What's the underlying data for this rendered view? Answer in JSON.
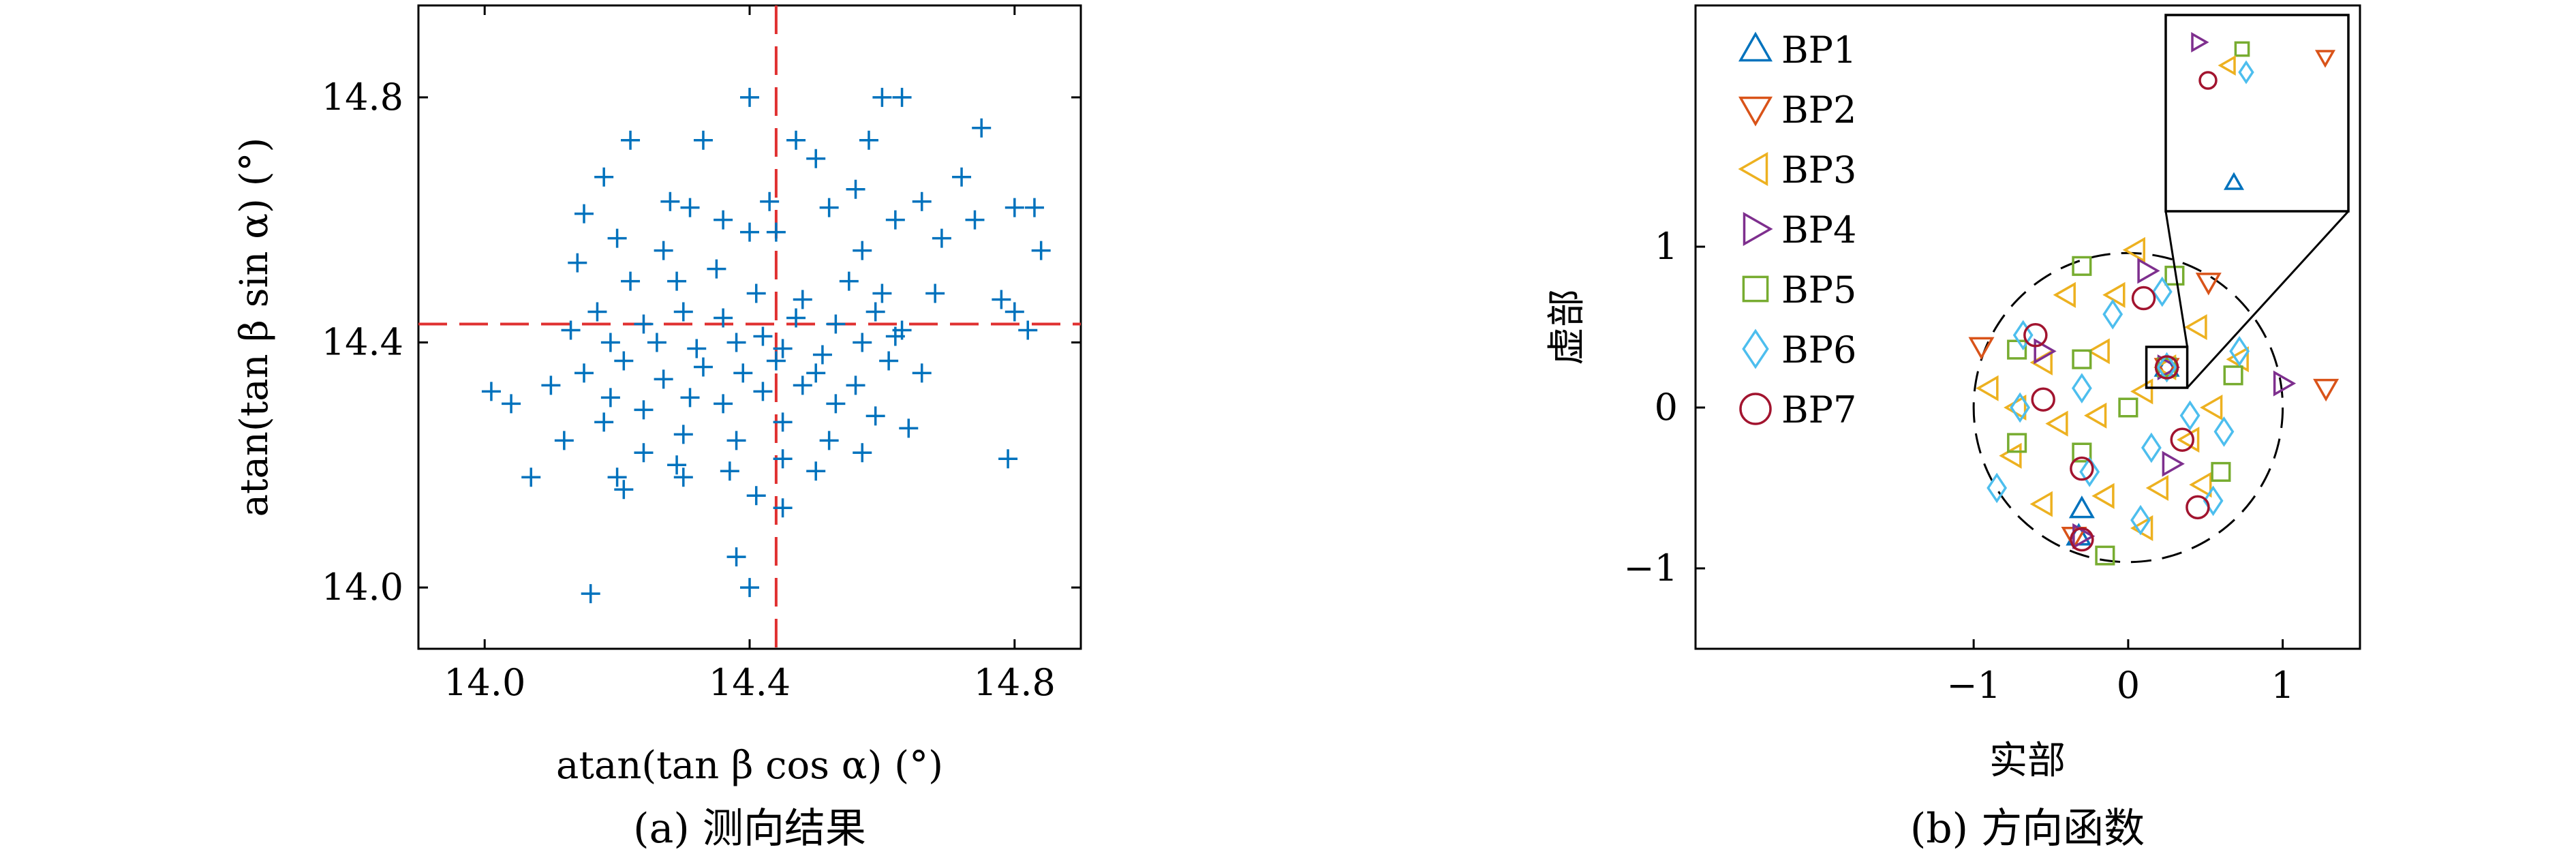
{
  "figure": {
    "caption_a": "(a) 测向结果",
    "caption_b": "(b) 方向函数"
  },
  "chart_data": [
    {
      "type": "scatter",
      "marker": "plus",
      "color": "#0072BD",
      "xlabel": "atan(tan β cos α) (°)",
      "ylabel": "atan(tan β sin α) (°)",
      "xlim": [
        13.9,
        14.9
      ],
      "ylim": [
        13.9,
        14.95
      ],
      "xticks": [
        "14.0",
        "14.4",
        "14.8"
      ],
      "yticks": [
        "14.0",
        "14.4",
        "14.8"
      ],
      "reference_lines": {
        "x": 14.44,
        "y": 14.43,
        "color": "#E03030",
        "style": "dashed"
      },
      "points": [
        [
          14.22,
          14.73
        ],
        [
          14.33,
          14.73
        ],
        [
          14.4,
          14.8
        ],
        [
          14.47,
          14.73
        ],
        [
          14.58,
          14.73
        ],
        [
          14.6,
          14.8
        ],
        [
          14.75,
          14.75
        ],
        [
          14.63,
          14.8
        ],
        [
          14.18,
          14.67
        ],
        [
          14.28,
          14.63
        ],
        [
          14.31,
          14.62
        ],
        [
          14.43,
          14.63
        ],
        [
          14.5,
          14.7
        ],
        [
          14.56,
          14.65
        ],
        [
          14.66,
          14.63
        ],
        [
          14.72,
          14.67
        ],
        [
          14.8,
          14.62
        ],
        [
          14.83,
          14.62
        ],
        [
          14.15,
          14.61
        ],
        [
          14.2,
          14.57
        ],
        [
          14.27,
          14.55
        ],
        [
          14.36,
          14.6
        ],
        [
          14.4,
          14.58
        ],
        [
          14.44,
          14.58
        ],
        [
          14.52,
          14.62
        ],
        [
          14.57,
          14.55
        ],
        [
          14.62,
          14.6
        ],
        [
          14.69,
          14.57
        ],
        [
          14.74,
          14.6
        ],
        [
          14.84,
          14.55
        ],
        [
          14.14,
          14.53
        ],
        [
          14.22,
          14.5
        ],
        [
          14.29,
          14.5
        ],
        [
          14.35,
          14.52
        ],
        [
          14.41,
          14.48
        ],
        [
          14.48,
          14.47
        ],
        [
          14.55,
          14.5
        ],
        [
          14.6,
          14.48
        ],
        [
          14.68,
          14.48
        ],
        [
          14.78,
          14.47
        ],
        [
          14.17,
          14.45
        ],
        [
          14.24,
          14.43
        ],
        [
          14.3,
          14.45
        ],
        [
          14.36,
          14.44
        ],
        [
          14.42,
          14.41
        ],
        [
          14.47,
          14.44
        ],
        [
          14.53,
          14.43
        ],
        [
          14.59,
          14.45
        ],
        [
          14.63,
          14.42
        ],
        [
          14.8,
          14.45
        ],
        [
          14.13,
          14.42
        ],
        [
          14.19,
          14.4
        ],
        [
          14.26,
          14.4
        ],
        [
          14.32,
          14.39
        ],
        [
          14.38,
          14.4
        ],
        [
          14.45,
          14.39
        ],
        [
          14.51,
          14.38
        ],
        [
          14.57,
          14.4
        ],
        [
          14.62,
          14.41
        ],
        [
          14.82,
          14.42
        ],
        [
          14.01,
          14.32
        ],
        [
          14.04,
          14.3
        ],
        [
          14.1,
          14.33
        ],
        [
          14.15,
          14.35
        ],
        [
          14.21,
          14.37
        ],
        [
          14.27,
          14.34
        ],
        [
          14.33,
          14.36
        ],
        [
          14.39,
          14.35
        ],
        [
          14.44,
          14.37
        ],
        [
          14.5,
          14.35
        ],
        [
          14.56,
          14.33
        ],
        [
          14.61,
          14.37
        ],
        [
          14.66,
          14.35
        ],
        [
          14.19,
          14.31
        ],
        [
          14.24,
          14.29
        ],
        [
          14.31,
          14.31
        ],
        [
          14.36,
          14.3
        ],
        [
          14.42,
          14.32
        ],
        [
          14.48,
          14.33
        ],
        [
          14.53,
          14.3
        ],
        [
          14.59,
          14.28
        ],
        [
          14.64,
          14.26
        ],
        [
          14.12,
          14.24
        ],
        [
          14.18,
          14.27
        ],
        [
          14.24,
          14.22
        ],
        [
          14.3,
          14.25
        ],
        [
          14.38,
          14.24
        ],
        [
          14.45,
          14.27
        ],
        [
          14.52,
          14.24
        ],
        [
          14.57,
          14.22
        ],
        [
          14.07,
          14.18
        ],
        [
          14.2,
          14.18
        ],
        [
          14.29,
          14.2
        ],
        [
          14.37,
          14.19
        ],
        [
          14.45,
          14.21
        ],
        [
          14.5,
          14.19
        ],
        [
          14.79,
          14.21
        ],
        [
          14.21,
          14.16
        ],
        [
          14.3,
          14.18
        ],
        [
          14.41,
          14.15
        ],
        [
          14.45,
          14.13
        ],
        [
          14.38,
          14.05
        ],
        [
          14.16,
          13.99
        ],
        [
          14.4,
          14.0
        ]
      ]
    },
    {
      "type": "scatter",
      "xlabel": "实部",
      "ylabel": "虚部",
      "xlim": [
        -2.8,
        1.5
      ],
      "ylim": [
        -1.5,
        2.5
      ],
      "xticks": [
        "−1",
        "0",
        "1"
      ],
      "yticks": [
        "−1",
        "0",
        "1"
      ],
      "unit_circle": {
        "radius": 1.0,
        "style": "dashed"
      },
      "series": [
        {
          "name": "BP1",
          "marker": "triangle-up",
          "color": "#0072BD",
          "points": [
            [
              -0.3,
              -0.63
            ],
            [
              0.25,
              0.25
            ],
            [
              -0.32,
              -0.8
            ]
          ]
        },
        {
          "name": "BP2",
          "marker": "triangle-down",
          "color": "#D95319",
          "points": [
            [
              -0.95,
              0.38
            ],
            [
              1.28,
              0.12
            ],
            [
              0.52,
              0.78
            ],
            [
              -0.35,
              -0.8
            ],
            [
              0.25,
              0.25
            ]
          ]
        },
        {
          "name": "BP3",
          "marker": "triangle-left",
          "color": "#EDB120",
          "points": [
            [
              -0.9,
              0.12
            ],
            [
              -0.72,
              0.0
            ],
            [
              -0.55,
              0.28
            ],
            [
              -0.4,
              0.7
            ],
            [
              -0.18,
              0.35
            ],
            [
              0.05,
              0.98
            ],
            [
              -0.45,
              -0.1
            ],
            [
              -0.2,
              -0.05
            ],
            [
              0.1,
              0.1
            ],
            [
              -0.75,
              -0.3
            ],
            [
              -0.55,
              -0.6
            ],
            [
              -0.15,
              -0.55
            ],
            [
              0.4,
              -0.2
            ],
            [
              0.55,
              0.0
            ],
            [
              0.72,
              0.3
            ],
            [
              0.45,
              0.5
            ],
            [
              0.2,
              -0.5
            ],
            [
              0.48,
              -0.48
            ],
            [
              -0.08,
              0.7
            ],
            [
              0.1,
              -0.75
            ],
            [
              0.25,
              0.25
            ]
          ]
        },
        {
          "name": "BP4",
          "marker": "triangle-right",
          "color": "#7E2F8E",
          "points": [
            [
              0.12,
              0.85
            ],
            [
              -0.55,
              0.35
            ],
            [
              1.0,
              0.15
            ],
            [
              0.28,
              -0.35
            ],
            [
              -0.3,
              -0.8
            ],
            [
              0.25,
              0.25
            ]
          ]
        },
        {
          "name": "BP5",
          "marker": "square",
          "color": "#77AC30",
          "points": [
            [
              -0.72,
              0.36
            ],
            [
              -0.3,
              0.3
            ],
            [
              -0.3,
              -0.28
            ],
            [
              -0.72,
              -0.22
            ],
            [
              0.3,
              0.82
            ],
            [
              -0.3,
              0.88
            ],
            [
              0.68,
              0.2
            ],
            [
              0.6,
              -0.4
            ],
            [
              -0.15,
              -0.92
            ],
            [
              0.0,
              0.0
            ],
            [
              0.25,
              0.25
            ]
          ]
        },
        {
          "name": "BP6",
          "marker": "diamond",
          "color": "#4DBEEE",
          "points": [
            [
              -0.68,
              0.45
            ],
            [
              -0.7,
              0.0
            ],
            [
              -0.85,
              -0.5
            ],
            [
              -0.3,
              0.12
            ],
            [
              -0.1,
              0.58
            ],
            [
              0.22,
              0.72
            ],
            [
              -0.25,
              -0.4
            ],
            [
              0.15,
              -0.25
            ],
            [
              0.4,
              -0.05
            ],
            [
              0.62,
              -0.15
            ],
            [
              0.72,
              0.35
            ],
            [
              0.08,
              -0.7
            ],
            [
              0.55,
              -0.58
            ],
            [
              0.25,
              0.25
            ]
          ]
        },
        {
          "name": "BP7",
          "marker": "circle",
          "color": "#A2142F",
          "points": [
            [
              -0.6,
              0.45
            ],
            [
              -0.55,
              0.05
            ],
            [
              0.1,
              0.68
            ],
            [
              -0.3,
              -0.38
            ],
            [
              0.35,
              -0.2
            ],
            [
              0.45,
              -0.62
            ],
            [
              -0.3,
              -0.82
            ],
            [
              0.25,
              0.25
            ]
          ]
        }
      ]
    }
  ]
}
